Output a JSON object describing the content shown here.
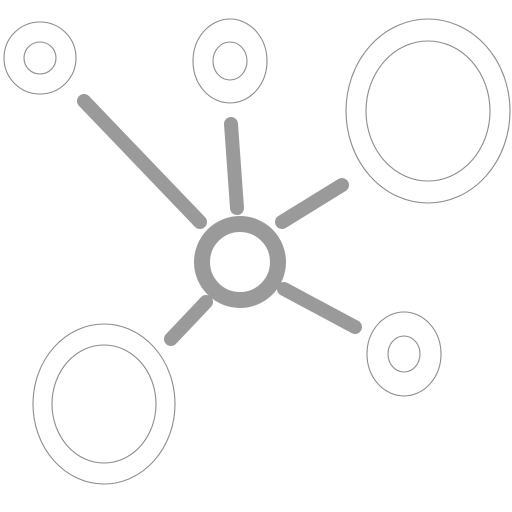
{
  "icon": {
    "name": "network-hub-icon",
    "stroke_color": "#9a9a9a",
    "ring_color": "#8c8c8c",
    "background_color": "#ffffff"
  }
}
